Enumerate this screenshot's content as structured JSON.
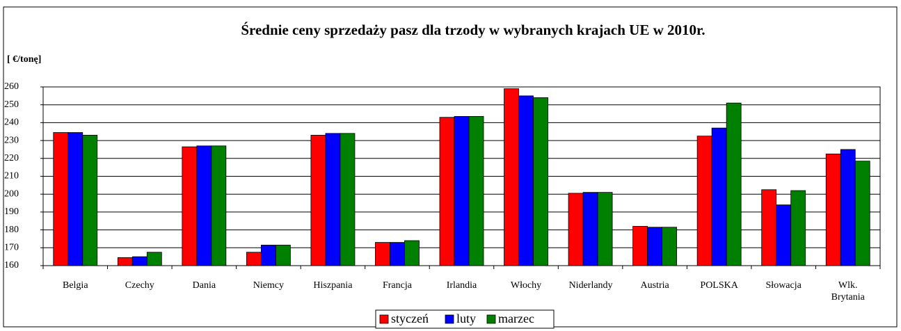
{
  "chart_data": {
    "type": "bar",
    "title": "Średnie ceny sprzedaży pasz dla trzody w wybranych krajach UE w 2010r.",
    "y_label": "[ €/tonę]",
    "categories": [
      "Belgia",
      "Czechy",
      "Dania",
      "Niemcy",
      "Hiszpania",
      "Francja",
      "Irlandia",
      "Włochy",
      "Niderlandy",
      "Austria",
      "POLSKA",
      "Słowacja",
      "Wlk. Brytania"
    ],
    "series": [
      {
        "name": "styczeń",
        "color": "#ff0000",
        "values": [
          234.5,
          164.5,
          226.5,
          167.5,
          233,
          173,
          243,
          259,
          200.5,
          182,
          232.5,
          202.5,
          222.5
        ]
      },
      {
        "name": "luty",
        "color": "#0000ff",
        "values": [
          234.5,
          165,
          227,
          171.5,
          234,
          173,
          243.5,
          255,
          201,
          181.5,
          237,
          194,
          225
        ]
      },
      {
        "name": "marzec",
        "color": "#008000",
        "values": [
          233,
          167.5,
          227,
          171.5,
          234,
          174,
          243.5,
          254,
          201,
          181.5,
          251,
          202,
          218.5
        ]
      }
    ],
    "ylim": [
      160,
      260
    ],
    "yticks": [
      160,
      170,
      180,
      190,
      200,
      210,
      220,
      230,
      240,
      250,
      260
    ],
    "grid": true
  }
}
